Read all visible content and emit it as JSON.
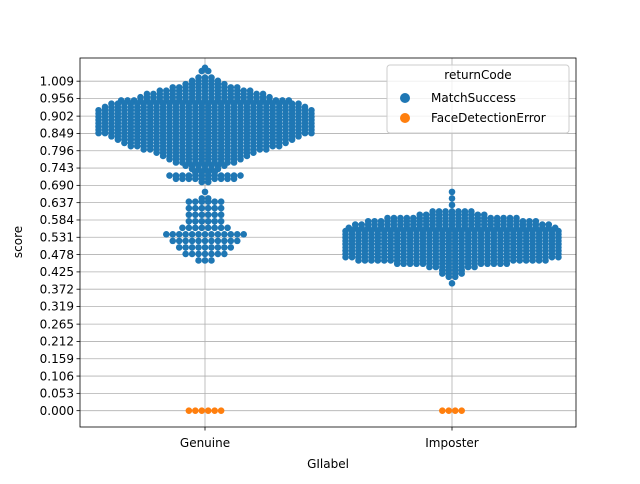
{
  "chart_data": {
    "type": "scatter",
    "subtype": "swarm",
    "xlabel": "GIlabel",
    "ylabel": "score",
    "categories": [
      "Genuine",
      "Imposter"
    ],
    "yticks": [
      "0.000",
      "0.053",
      "0.106",
      "0.159",
      "0.212",
      "0.265",
      "0.319",
      "0.372",
      "0.425",
      "0.478",
      "0.531",
      "0.584",
      "0.637",
      "0.690",
      "0.743",
      "0.796",
      "0.849",
      "0.902",
      "0.956",
      "1.009"
    ],
    "ylim": [
      -0.05,
      1.08
    ],
    "grid": "horizontal and vertical",
    "legend": {
      "title": "returnCode",
      "placement": "top-right",
      "entries": [
        {
          "label": "MatchSuccess",
          "color": "#1f77b4"
        },
        {
          "label": "FaceDetectionError",
          "color": "#ff7f0e"
        }
      ]
    },
    "series": [
      {
        "name": "MatchSuccess",
        "color": "#1f77b4",
        "groups": [
          {
            "category": "Genuine",
            "bins": [
              [
                1.05,
                1
              ],
              [
                1.04,
                2
              ],
              [
                1.02,
                3
              ],
              [
                1.01,
                5
              ],
              [
                1.0,
                7
              ],
              [
                0.99,
                11
              ],
              [
                0.98,
                15
              ],
              [
                0.97,
                19
              ],
              [
                0.96,
                21
              ],
              [
                0.95,
                27
              ],
              [
                0.94,
                30
              ],
              [
                0.93,
                32
              ],
              [
                0.92,
                34
              ],
              [
                0.91,
                34
              ],
              [
                0.9,
                34
              ],
              [
                0.89,
                34
              ],
              [
                0.88,
                34
              ],
              [
                0.87,
                34
              ],
              [
                0.86,
                34
              ],
              [
                0.85,
                34
              ],
              [
                0.84,
                30
              ],
              [
                0.83,
                28
              ],
              [
                0.82,
                26
              ],
              [
                0.81,
                24
              ],
              [
                0.8,
                20
              ],
              [
                0.79,
                16
              ],
              [
                0.78,
                14
              ],
              [
                0.77,
                12
              ],
              [
                0.76,
                10
              ],
              [
                0.75,
                7
              ],
              [
                0.74,
                5
              ],
              [
                0.73,
                4
              ],
              [
                0.72,
                12
              ],
              [
                0.71,
                10
              ],
              [
                0.7,
                2
              ],
              [
                0.67,
                1
              ],
              [
                0.65,
                2
              ],
              [
                0.64,
                6
              ],
              [
                0.62,
                6
              ],
              [
                0.6,
                6
              ],
              [
                0.58,
                6
              ],
              [
                0.56,
                8
              ],
              [
                0.54,
                13
              ],
              [
                0.52,
                11
              ],
              [
                0.5,
                9
              ],
              [
                0.48,
                7
              ],
              [
                0.46,
                3
              ]
            ]
          },
          {
            "category": "Imposter",
            "bins": [
              [
                0.67,
                1
              ],
              [
                0.65,
                1
              ],
              [
                0.63,
                1
              ],
              [
                0.61,
                7
              ],
              [
                0.6,
                11
              ],
              [
                0.59,
                21
              ],
              [
                0.58,
                27
              ],
              [
                0.57,
                31
              ],
              [
                0.56,
                33
              ],
              [
                0.55,
                34
              ],
              [
                0.54,
                34
              ],
              [
                0.53,
                34
              ],
              [
                0.52,
                34
              ],
              [
                0.51,
                34
              ],
              [
                0.5,
                34
              ],
              [
                0.49,
                34
              ],
              [
                0.48,
                34
              ],
              [
                0.47,
                34
              ],
              [
                0.46,
                30
              ],
              [
                0.45,
                18
              ],
              [
                0.44,
                8
              ],
              [
                0.43,
                4
              ],
              [
                0.42,
                4
              ],
              [
                0.41,
                2
              ],
              [
                0.39,
                1
              ]
            ]
          }
        ]
      },
      {
        "name": "FaceDetectionError",
        "color": "#ff7f0e",
        "groups": [
          {
            "category": "Genuine",
            "bins": [
              [
                0.0,
                6
              ]
            ]
          },
          {
            "category": "Imposter",
            "bins": [
              [
                0.0,
                4
              ]
            ]
          }
        ]
      }
    ]
  }
}
